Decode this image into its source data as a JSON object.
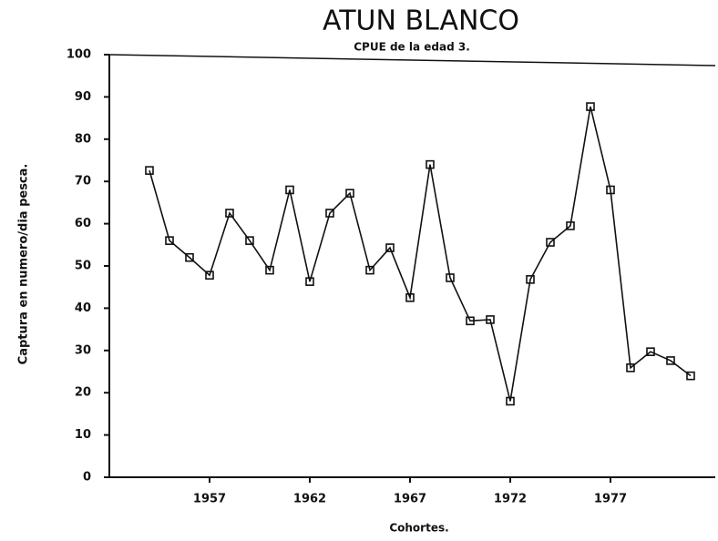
{
  "chart_data": {
    "type": "line",
    "title": "ATUN BLANCO",
    "subtitle": "CPUE de la edad 3.",
    "x_label": "Cohortes.",
    "y_label": "Captura en numero/dia pesca.",
    "x": [
      1954,
      1955,
      1956,
      1957,
      1958,
      1959,
      1960,
      1961,
      1962,
      1963,
      1964,
      1965,
      1966,
      1967,
      1968,
      1969,
      1970,
      1971,
      1972,
      1973,
      1974,
      1975,
      1976,
      1977,
      1978,
      1979,
      1980,
      1981
    ],
    "series": [
      {
        "name": "CPUE",
        "color": "#111111",
        "values": [
          72.6,
          56,
          52,
          47.8,
          62.5,
          56,
          49,
          68,
          46.3,
          62.5,
          67.2,
          49,
          54.3,
          42.5,
          74,
          47.2,
          37,
          37.3,
          18,
          46.8,
          55.6,
          59.5,
          87.7,
          68,
          25.9,
          29.7,
          27.6,
          24
        ]
      }
    ],
    "xlim": [
      1952,
      1982
    ],
    "xticks": [
      1957,
      1962,
      1967,
      1972,
      1977
    ],
    "ylim": [
      0,
      100
    ],
    "yticks": [
      0,
      10,
      20,
      30,
      40,
      50,
      60,
      70,
      80,
      90,
      100
    ],
    "grid": false
  }
}
